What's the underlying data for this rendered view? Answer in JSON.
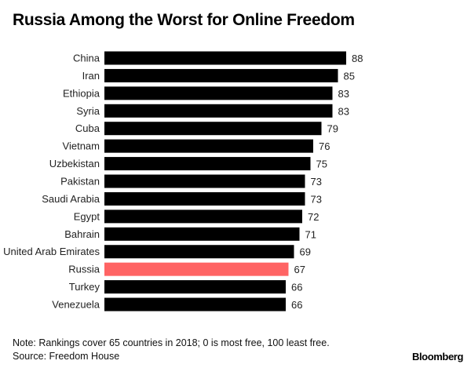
{
  "chart_data": {
    "type": "bar",
    "orientation": "horizontal",
    "title": "Russia Among the Worst for Online Freedom",
    "categories": [
      "China",
      "Iran",
      "Ethiopia",
      "Syria",
      "Cuba",
      "Vietnam",
      "Uzbekistan",
      "Pakistan",
      "Saudi Arabia",
      "Egypt",
      "Bahrain",
      "United Arab Emirates",
      "Russia",
      "Turkey",
      "Venezuela"
    ],
    "values": [
      88,
      85,
      83,
      83,
      79,
      76,
      75,
      73,
      73,
      72,
      71,
      69,
      67,
      66,
      66
    ],
    "xlim": [
      0,
      100
    ],
    "grid": false,
    "highlight": "Russia",
    "colors": {
      "default": "#000000",
      "highlight": "#ff6464"
    }
  },
  "footer": {
    "note": "Note: Rankings cover 65 countries in 2018; 0 is most free, 100 least free.",
    "source": "Source: Freedom House",
    "logo": "Bloomberg"
  }
}
